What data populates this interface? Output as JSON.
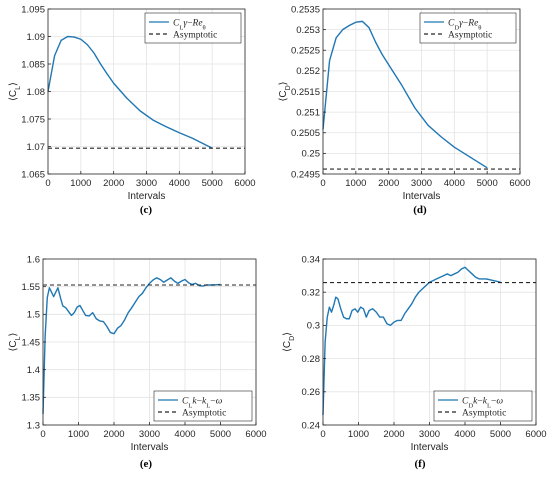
{
  "chart_data": [
    {
      "type": "line",
      "caption": "(c)",
      "xlabel": "Intervals",
      "ylabel": "⟨C_L⟩",
      "xlim": [
        0,
        6000
      ],
      "ylim": [
        1.065,
        1.095
      ],
      "xticks": [
        0,
        1000,
        2000,
        3000,
        4000,
        5000,
        6000
      ],
      "xtick_labels": [
        "0",
        "1000",
        "2000",
        "3000",
        "4000",
        "5000",
        "6000"
      ],
      "yticks": [
        1.065,
        1.07,
        1.075,
        1.08,
        1.085,
        1.09,
        1.095
      ],
      "ytick_labels": [
        "1.065",
        "1.07",
        "1.075",
        "1.08",
        "1.085",
        "1.09",
        "1.095"
      ],
      "grid": true,
      "legend_position": "top-right",
      "series": [
        {
          "name": "C_Lγ−Re_θ",
          "legend_label": "C_Lγ−Re_θ",
          "color": "#1f77b4",
          "style": "solid",
          "x": [
            0,
            200,
            400,
            600,
            800,
            1000,
            1200,
            1400,
            1600,
            1800,
            2000,
            2400,
            2800,
            3200,
            3600,
            4000,
            4400,
            4800,
            5000
          ],
          "y": [
            1.08,
            1.0865,
            1.0893,
            1.09,
            1.0899,
            1.0895,
            1.0885,
            1.087,
            1.085,
            1.0832,
            1.0815,
            1.0788,
            1.0765,
            1.0748,
            1.0736,
            1.0725,
            1.0715,
            1.0703,
            1.0697
          ]
        },
        {
          "name": "Asymptotic",
          "legend_label": "Asymptotic",
          "color": "#262626",
          "style": "dashed",
          "x": [
            0,
            6000
          ],
          "y": [
            1.0697,
            1.0697
          ]
        }
      ]
    },
    {
      "type": "line",
      "caption": "(d)",
      "xlabel": "Intervals",
      "ylabel": "⟨C_D⟩",
      "xlim": [
        0,
        6000
      ],
      "ylim": [
        0.2495,
        0.2535
      ],
      "xticks": [
        0,
        1000,
        2000,
        3000,
        4000,
        5000,
        6000
      ],
      "xtick_labels": [
        "0",
        "1000",
        "2000",
        "3000",
        "4000",
        "5000",
        "6000"
      ],
      "yticks": [
        0.2495,
        0.25,
        0.2505,
        0.251,
        0.2515,
        0.252,
        0.2525,
        0.253,
        0.2535
      ],
      "ytick_labels": [
        "0.2495",
        "0.25",
        "0.2505",
        "0.251",
        "0.2515",
        "0.252",
        "0.2525",
        "0.253",
        "0.2535"
      ],
      "grid": true,
      "legend_position": "top-right",
      "series": [
        {
          "name": "C_Dγ−Re_θ",
          "legend_label": "C_Dγ−Re_θ",
          "color": "#1f77b4",
          "style": "solid",
          "x": [
            0,
            200,
            400,
            600,
            800,
            1000,
            1200,
            1400,
            1600,
            1800,
            2000,
            2400,
            2800,
            3200,
            3600,
            4000,
            4400,
            4800,
            5000
          ],
          "y": [
            0.25058,
            0.25225,
            0.2528,
            0.253,
            0.2531,
            0.25318,
            0.2532,
            0.25305,
            0.2527,
            0.2524,
            0.25215,
            0.25165,
            0.2511,
            0.25068,
            0.2504,
            0.25015,
            0.24995,
            0.24975,
            0.24965
          ]
        },
        {
          "name": "Asymptotic",
          "legend_label": "Asymptotic",
          "color": "#262626",
          "style": "dashed",
          "x": [
            0,
            6000
          ],
          "y": [
            0.24962,
            0.24962
          ]
        }
      ]
    },
    {
      "type": "line",
      "caption": "(e)",
      "xlabel": "Intervals",
      "ylabel": "⟨C_L⟩",
      "xlim": [
        0,
        6000
      ],
      "ylim": [
        1.3,
        1.6
      ],
      "xticks": [
        0,
        1000,
        2000,
        3000,
        4000,
        5000,
        6000
      ],
      "xtick_labels": [
        "0",
        "1000",
        "2000",
        "3000",
        "4000",
        "5000",
        "6000"
      ],
      "yticks": [
        1.3,
        1.35,
        1.4,
        1.45,
        1.5,
        1.55,
        1.6
      ],
      "ytick_labels": [
        "1.3",
        "1.35",
        "1.4",
        "1.45",
        "1.5",
        "1.55",
        "1.6"
      ],
      "grid": true,
      "legend_position": "bottom-right",
      "series": [
        {
          "name": "C_Lk−k_L−ω",
          "legend_label": "C_Lk−k_L−ω",
          "color": "#1f77b4",
          "style": "solid",
          "x": [
            0,
            60,
            120,
            180,
            240,
            300,
            360,
            420,
            500,
            560,
            640,
            720,
            800,
            880,
            960,
            1040,
            1120,
            1200,
            1300,
            1400,
            1500,
            1600,
            1700,
            1800,
            1900,
            2000,
            2100,
            2200,
            2300,
            2400,
            2500,
            2600,
            2700,
            2800,
            2900,
            3000,
            3100,
            3200,
            3300,
            3400,
            3500,
            3600,
            3700,
            3800,
            3900,
            4000,
            4100,
            4200,
            4300,
            4400,
            4500,
            4600,
            4800,
            5000
          ],
          "y": [
            1.32,
            1.46,
            1.53,
            1.548,
            1.54,
            1.532,
            1.54,
            1.548,
            1.528,
            1.515,
            1.512,
            1.505,
            1.498,
            1.503,
            1.513,
            1.516,
            1.507,
            1.498,
            1.497,
            1.503,
            1.492,
            1.488,
            1.487,
            1.478,
            1.467,
            1.465,
            1.475,
            1.48,
            1.49,
            1.503,
            1.512,
            1.522,
            1.532,
            1.538,
            1.548,
            1.556,
            1.562,
            1.566,
            1.563,
            1.558,
            1.562,
            1.566,
            1.56,
            1.556,
            1.56,
            1.563,
            1.557,
            1.554,
            1.556,
            1.552,
            1.551,
            1.553,
            1.553,
            1.554
          ]
        },
        {
          "name": "Asymptotic",
          "legend_label": "Asymptotic",
          "color": "#262626",
          "style": "dashed",
          "x": [
            0,
            6000
          ],
          "y": [
            1.553,
            1.553
          ]
        }
      ]
    },
    {
      "type": "line",
      "caption": "(f)",
      "xlabel": "Intervals",
      "ylabel": "⟨C_D⟩",
      "xlim": [
        0,
        6000
      ],
      "ylim": [
        0.24,
        0.34
      ],
      "xticks": [
        0,
        1000,
        2000,
        3000,
        4000,
        5000,
        6000
      ],
      "xtick_labels": [
        "0",
        "1000",
        "2000",
        "3000",
        "4000",
        "5000",
        "6000"
      ],
      "yticks": [
        0.24,
        0.26,
        0.28,
        0.3,
        0.32,
        0.34
      ],
      "ytick_labels": [
        "0.24",
        "0.26",
        "0.28",
        "0.3",
        "0.32",
        "0.34"
      ],
      "grid": true,
      "legend_position": "bottom-right",
      "series": [
        {
          "name": "C_Dk−k_L−ω",
          "legend_label": "C_Dk−k_L−ω",
          "color": "#1f77b4",
          "style": "solid",
          "x": [
            0,
            60,
            120,
            180,
            240,
            300,
            360,
            420,
            500,
            580,
            660,
            740,
            820,
            900,
            980,
            1060,
            1140,
            1220,
            1300,
            1400,
            1500,
            1600,
            1700,
            1800,
            1900,
            2000,
            2100,
            2200,
            2300,
            2400,
            2500,
            2600,
            2700,
            2800,
            2900,
            3000,
            3100,
            3200,
            3300,
            3400,
            3500,
            3600,
            3700,
            3800,
            3900,
            4000,
            4100,
            4200,
            4300,
            4400,
            4600,
            4800,
            5000
          ],
          "y": [
            0.246,
            0.29,
            0.305,
            0.311,
            0.308,
            0.312,
            0.317,
            0.316,
            0.31,
            0.305,
            0.304,
            0.304,
            0.309,
            0.31,
            0.308,
            0.311,
            0.31,
            0.305,
            0.309,
            0.31,
            0.308,
            0.305,
            0.305,
            0.301,
            0.3,
            0.302,
            0.303,
            0.303,
            0.307,
            0.31,
            0.313,
            0.317,
            0.32,
            0.322,
            0.324,
            0.326,
            0.327,
            0.328,
            0.329,
            0.33,
            0.331,
            0.33,
            0.331,
            0.332,
            0.334,
            0.335,
            0.333,
            0.331,
            0.329,
            0.328,
            0.328,
            0.327,
            0.326
          ]
        },
        {
          "name": "Asymptotic",
          "legend_label": "Asymptotic",
          "color": "#262626",
          "style": "dashed",
          "x": [
            0,
            6000
          ],
          "y": [
            0.3258,
            0.3258
          ]
        }
      ]
    }
  ]
}
